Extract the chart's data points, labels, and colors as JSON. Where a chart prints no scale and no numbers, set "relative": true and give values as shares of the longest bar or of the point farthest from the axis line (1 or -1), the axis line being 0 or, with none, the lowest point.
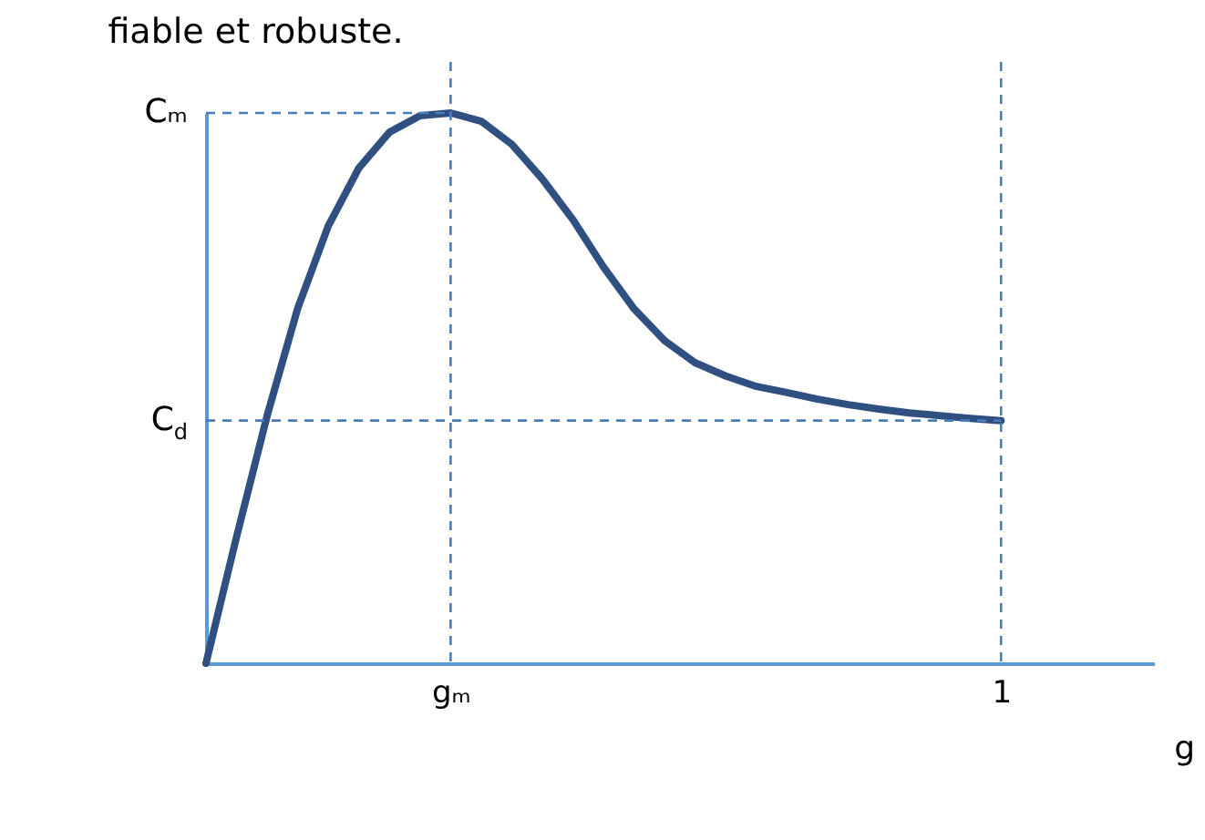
{
  "chart_data": {
    "type": "line",
    "relative": true,
    "annotations": [
      "fiable et robuste."
    ],
    "xlabel": "g",
    "categories": [
      null,
      null,
      null,
      null,
      null,
      null,
      null,
      null,
      "gₘ",
      null,
      null,
      null,
      null,
      null,
      null,
      null,
      null,
      null,
      null,
      null,
      null,
      null,
      null,
      null,
      null,
      null,
      "1",
      null,
      null,
      null,
      null,
      null
    ],
    "series": [
      {
        "color": "#2f5080",
        "values": [
          0,
          0.23,
          0.45,
          0.645,
          0.795,
          0.9,
          0.965,
          0.995,
          1,
          0.985,
          0.943,
          0.88,
          0.806,
          0.72,
          0.644,
          0.586,
          0.546,
          0.522,
          0.503,
          0.492,
          0.48,
          0.47,
          0.462,
          0.455,
          0.45,
          0.445,
          0.441,
          null,
          null,
          null,
          null,
          null
        ]
      }
    ],
    "ref_lines": [
      {
        "axis": "y",
        "value": 1,
        "label": "Cₘ",
        "color": "#4a7ebb",
        "line_style": "dashed"
      },
      {
        "axis": "y",
        "value": 0.441,
        "label": "C$_{d}$",
        "color": "#4a7ebb",
        "line_style": "dashed"
      },
      {
        "axis": "x",
        "value": "gₘ",
        "label": null,
        "color": "#4a7ebb",
        "line_style": "dashed"
      },
      {
        "axis": "x",
        "value": "1",
        "label": null,
        "color": "#4a7ebb",
        "line_style": "dashed"
      }
    ],
    "grid": false,
    "marker": "none",
    "line_style": "solid"
  }
}
